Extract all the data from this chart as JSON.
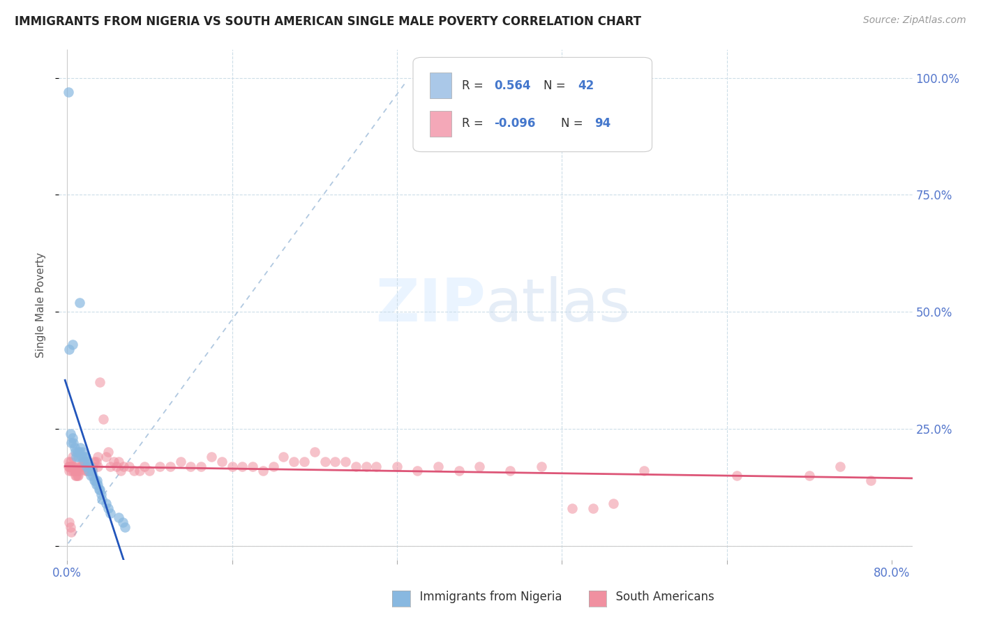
{
  "title": "IMMIGRANTS FROM NIGERIA VS SOUTH AMERICAN SINGLE MALE POVERTY CORRELATION CHART",
  "source": "Source: ZipAtlas.com",
  "ylabel": "Single Male Poverty",
  "yticks": [
    "",
    "25.0%",
    "50.0%",
    "75.0%",
    "100.0%"
  ],
  "ytick_vals": [
    0.0,
    0.25,
    0.5,
    0.75,
    1.0
  ],
  "xtick_vals": [
    0.0,
    0.16,
    0.32,
    0.48,
    0.64,
    0.8
  ],
  "legend_nigeria_color": "#aac8e8",
  "legend_south_color": "#f4a8b8",
  "nigeria_color": "#88b8e0",
  "south_color": "#f090a0",
  "nigeria_trend_color": "#2255bb",
  "south_trend_color": "#dd5577",
  "dashed_color": "#b0c8e0",
  "nigeria_R": "0.564",
  "nigeria_N": "42",
  "south_R": "-0.096",
  "south_N": "94",
  "nigeria_points": [
    [
      0.001,
      0.97
    ],
    [
      0.005,
      0.43
    ],
    [
      0.012,
      0.52
    ],
    [
      0.002,
      0.42
    ],
    [
      0.003,
      0.24
    ],
    [
      0.004,
      0.22
    ],
    [
      0.005,
      0.23
    ],
    [
      0.006,
      0.22
    ],
    [
      0.007,
      0.21
    ],
    [
      0.008,
      0.2
    ],
    [
      0.009,
      0.19
    ],
    [
      0.01,
      0.2
    ],
    [
      0.011,
      0.19
    ],
    [
      0.012,
      0.2
    ],
    [
      0.013,
      0.21
    ],
    [
      0.014,
      0.19
    ],
    [
      0.015,
      0.2
    ],
    [
      0.016,
      0.19
    ],
    [
      0.017,
      0.18
    ],
    [
      0.018,
      0.19
    ],
    [
      0.019,
      0.17
    ],
    [
      0.02,
      0.18
    ],
    [
      0.021,
      0.16
    ],
    [
      0.022,
      0.17
    ],
    [
      0.023,
      0.15
    ],
    [
      0.024,
      0.16
    ],
    [
      0.025,
      0.15
    ],
    [
      0.026,
      0.14
    ],
    [
      0.027,
      0.14
    ],
    [
      0.028,
      0.13
    ],
    [
      0.029,
      0.14
    ],
    [
      0.03,
      0.13
    ],
    [
      0.031,
      0.12
    ],
    [
      0.032,
      0.12
    ],
    [
      0.033,
      0.11
    ],
    [
      0.034,
      0.1
    ],
    [
      0.038,
      0.09
    ],
    [
      0.04,
      0.08
    ],
    [
      0.042,
      0.07
    ],
    [
      0.05,
      0.06
    ],
    [
      0.054,
      0.05
    ],
    [
      0.056,
      0.04
    ]
  ],
  "south_points": [
    [
      0.001,
      0.18
    ],
    [
      0.001,
      0.17
    ],
    [
      0.002,
      0.17
    ],
    [
      0.002,
      0.16
    ],
    [
      0.003,
      0.18
    ],
    [
      0.003,
      0.17
    ],
    [
      0.004,
      0.16
    ],
    [
      0.004,
      0.17
    ],
    [
      0.005,
      0.19
    ],
    [
      0.005,
      0.17
    ],
    [
      0.006,
      0.17
    ],
    [
      0.006,
      0.16
    ],
    [
      0.007,
      0.16
    ],
    [
      0.007,
      0.17
    ],
    [
      0.008,
      0.15
    ],
    [
      0.008,
      0.16
    ],
    [
      0.009,
      0.15
    ],
    [
      0.009,
      0.16
    ],
    [
      0.01,
      0.16
    ],
    [
      0.01,
      0.15
    ],
    [
      0.011,
      0.15
    ],
    [
      0.012,
      0.16
    ],
    [
      0.013,
      0.17
    ],
    [
      0.014,
      0.17
    ],
    [
      0.015,
      0.18
    ],
    [
      0.016,
      0.18
    ],
    [
      0.017,
      0.17
    ],
    [
      0.018,
      0.16
    ],
    [
      0.019,
      0.16
    ],
    [
      0.02,
      0.16
    ],
    [
      0.021,
      0.17
    ],
    [
      0.022,
      0.17
    ],
    [
      0.023,
      0.16
    ],
    [
      0.024,
      0.16
    ],
    [
      0.025,
      0.17
    ],
    [
      0.026,
      0.18
    ],
    [
      0.028,
      0.18
    ],
    [
      0.03,
      0.19
    ],
    [
      0.03,
      0.17
    ],
    [
      0.032,
      0.35
    ],
    [
      0.035,
      0.27
    ],
    [
      0.038,
      0.19
    ],
    [
      0.04,
      0.2
    ],
    [
      0.042,
      0.17
    ],
    [
      0.045,
      0.18
    ],
    [
      0.048,
      0.17
    ],
    [
      0.05,
      0.18
    ],
    [
      0.052,
      0.16
    ],
    [
      0.055,
      0.17
    ],
    [
      0.06,
      0.17
    ],
    [
      0.065,
      0.16
    ],
    [
      0.07,
      0.16
    ],
    [
      0.075,
      0.17
    ],
    [
      0.08,
      0.16
    ],
    [
      0.09,
      0.17
    ],
    [
      0.1,
      0.17
    ],
    [
      0.11,
      0.18
    ],
    [
      0.12,
      0.17
    ],
    [
      0.13,
      0.17
    ],
    [
      0.14,
      0.19
    ],
    [
      0.15,
      0.18
    ],
    [
      0.16,
      0.17
    ],
    [
      0.17,
      0.17
    ],
    [
      0.18,
      0.17
    ],
    [
      0.19,
      0.16
    ],
    [
      0.2,
      0.17
    ],
    [
      0.21,
      0.19
    ],
    [
      0.22,
      0.18
    ],
    [
      0.23,
      0.18
    ],
    [
      0.24,
      0.2
    ],
    [
      0.25,
      0.18
    ],
    [
      0.26,
      0.18
    ],
    [
      0.27,
      0.18
    ],
    [
      0.28,
      0.17
    ],
    [
      0.29,
      0.17
    ],
    [
      0.3,
      0.17
    ],
    [
      0.32,
      0.17
    ],
    [
      0.34,
      0.16
    ],
    [
      0.36,
      0.17
    ],
    [
      0.38,
      0.16
    ],
    [
      0.4,
      0.17
    ],
    [
      0.43,
      0.16
    ],
    [
      0.46,
      0.17
    ],
    [
      0.49,
      0.08
    ],
    [
      0.51,
      0.08
    ],
    [
      0.53,
      0.09
    ],
    [
      0.56,
      0.16
    ],
    [
      0.65,
      0.15
    ],
    [
      0.72,
      0.15
    ],
    [
      0.75,
      0.17
    ],
    [
      0.78,
      0.14
    ],
    [
      0.002,
      0.05
    ],
    [
      0.003,
      0.04
    ],
    [
      0.004,
      0.03
    ]
  ]
}
